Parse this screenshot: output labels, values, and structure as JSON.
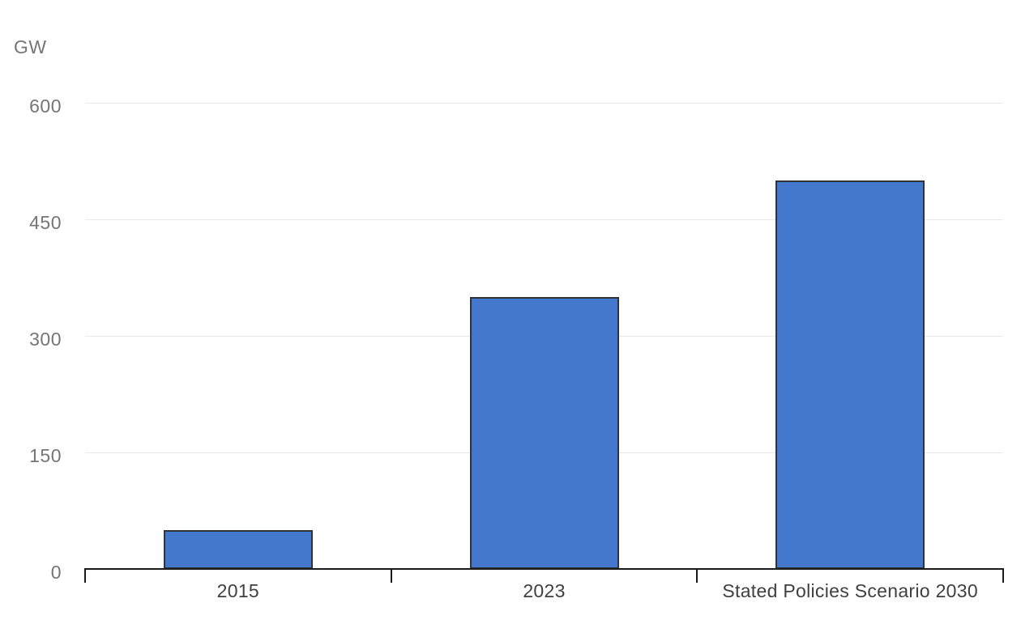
{
  "chart_data": {
    "type": "bar",
    "title": "",
    "ylabel": "GW",
    "xlabel": "",
    "categories": [
      "2015",
      "2023",
      "Stated Policies Scenario 2030"
    ],
    "values": [
      50,
      350,
      500
    ],
    "ylim": [
      0,
      600
    ],
    "yticks": [
      0,
      150,
      300,
      450,
      600
    ],
    "grid": true,
    "legend": false,
    "colors": {
      "bar_fill": "#4478CD",
      "bar_border": "#2E333C",
      "gridline": "#E8E8E8",
      "axis": "#1A1A1A",
      "y_tick_label": "#75757A",
      "x_tick_label": "#404040",
      "background": "#FFFFFF"
    }
  }
}
